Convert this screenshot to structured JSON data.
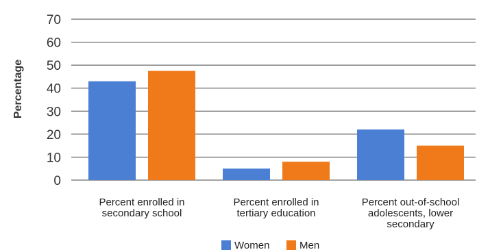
{
  "chart_data": {
    "type": "bar",
    "ylabel": "Percentage",
    "xlabel": "",
    "ylim": [
      0,
      70
    ],
    "yticks": [
      0,
      10,
      20,
      30,
      40,
      50,
      60,
      70
    ],
    "grid": true,
    "legend_position": "bottom-center",
    "categories": [
      [
        "Percent enrolled in",
        "secondary school"
      ],
      [
        "Percent enrolled in",
        "tertiary education"
      ],
      [
        "Percent out-of-school",
        "adolescents, lower",
        "secondary"
      ]
    ],
    "series": [
      {
        "name": "Women",
        "color": "#4a7fd4",
        "values": [
          43,
          5,
          22
        ]
      },
      {
        "name": "Men",
        "color": "#f07a1a",
        "values": [
          47.5,
          8,
          15
        ]
      }
    ]
  }
}
